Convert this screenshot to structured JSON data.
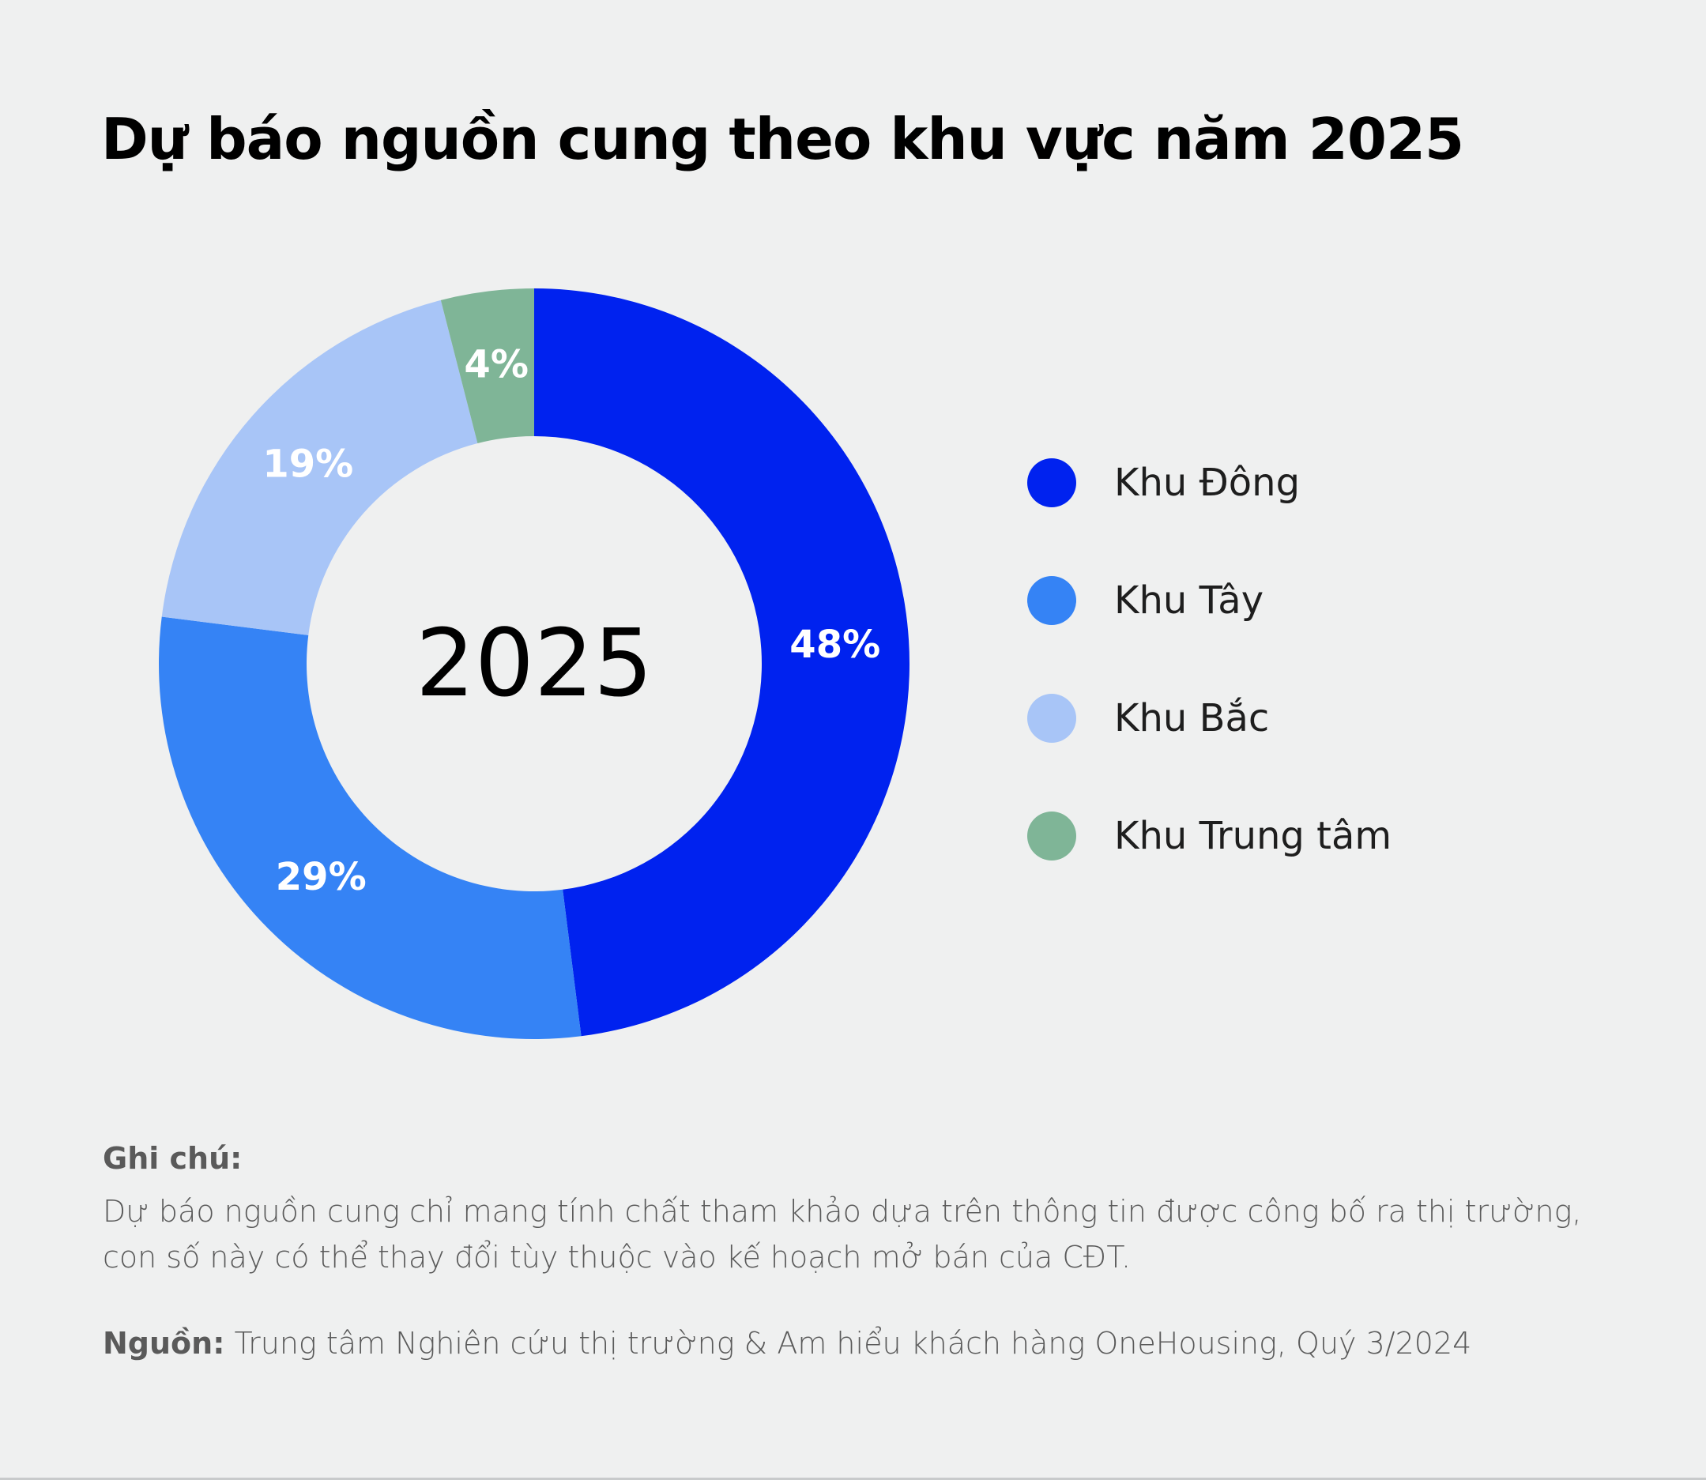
{
  "chart_data": {
    "type": "pie",
    "variant": "donut",
    "title": "Dự báo nguồn cung theo khu vực năm 2025",
    "center_label": "2025",
    "categories": [
      "Khu Đông",
      "Khu Tây",
      "Khu Bắc",
      "Khu Trung tâm"
    ],
    "values": [
      48,
      29,
      19,
      4
    ],
    "value_labels": [
      "48%",
      "29%",
      "19%",
      "4%"
    ],
    "colors": [
      "#0022ef",
      "#3583f5",
      "#a8c5f7",
      "#7fb597"
    ],
    "legend_position": "right",
    "start_angle": "12 o'clock",
    "direction": "clockwise"
  },
  "note": {
    "heading": "Ghi chú:",
    "body": "Dự báo nguồn cung chỉ mang tính chất tham khảo dựa trên thông tin được công bố ra thị trường, con số này có thể thay đổi tùy thuộc vào kế hoạch mở bán của CĐT."
  },
  "source": {
    "label": "Nguồn:",
    "text": "Trung tâm Nghiên cứu thị trường & Am hiểu khách hàng OneHousing, Quý 3/2024"
  }
}
